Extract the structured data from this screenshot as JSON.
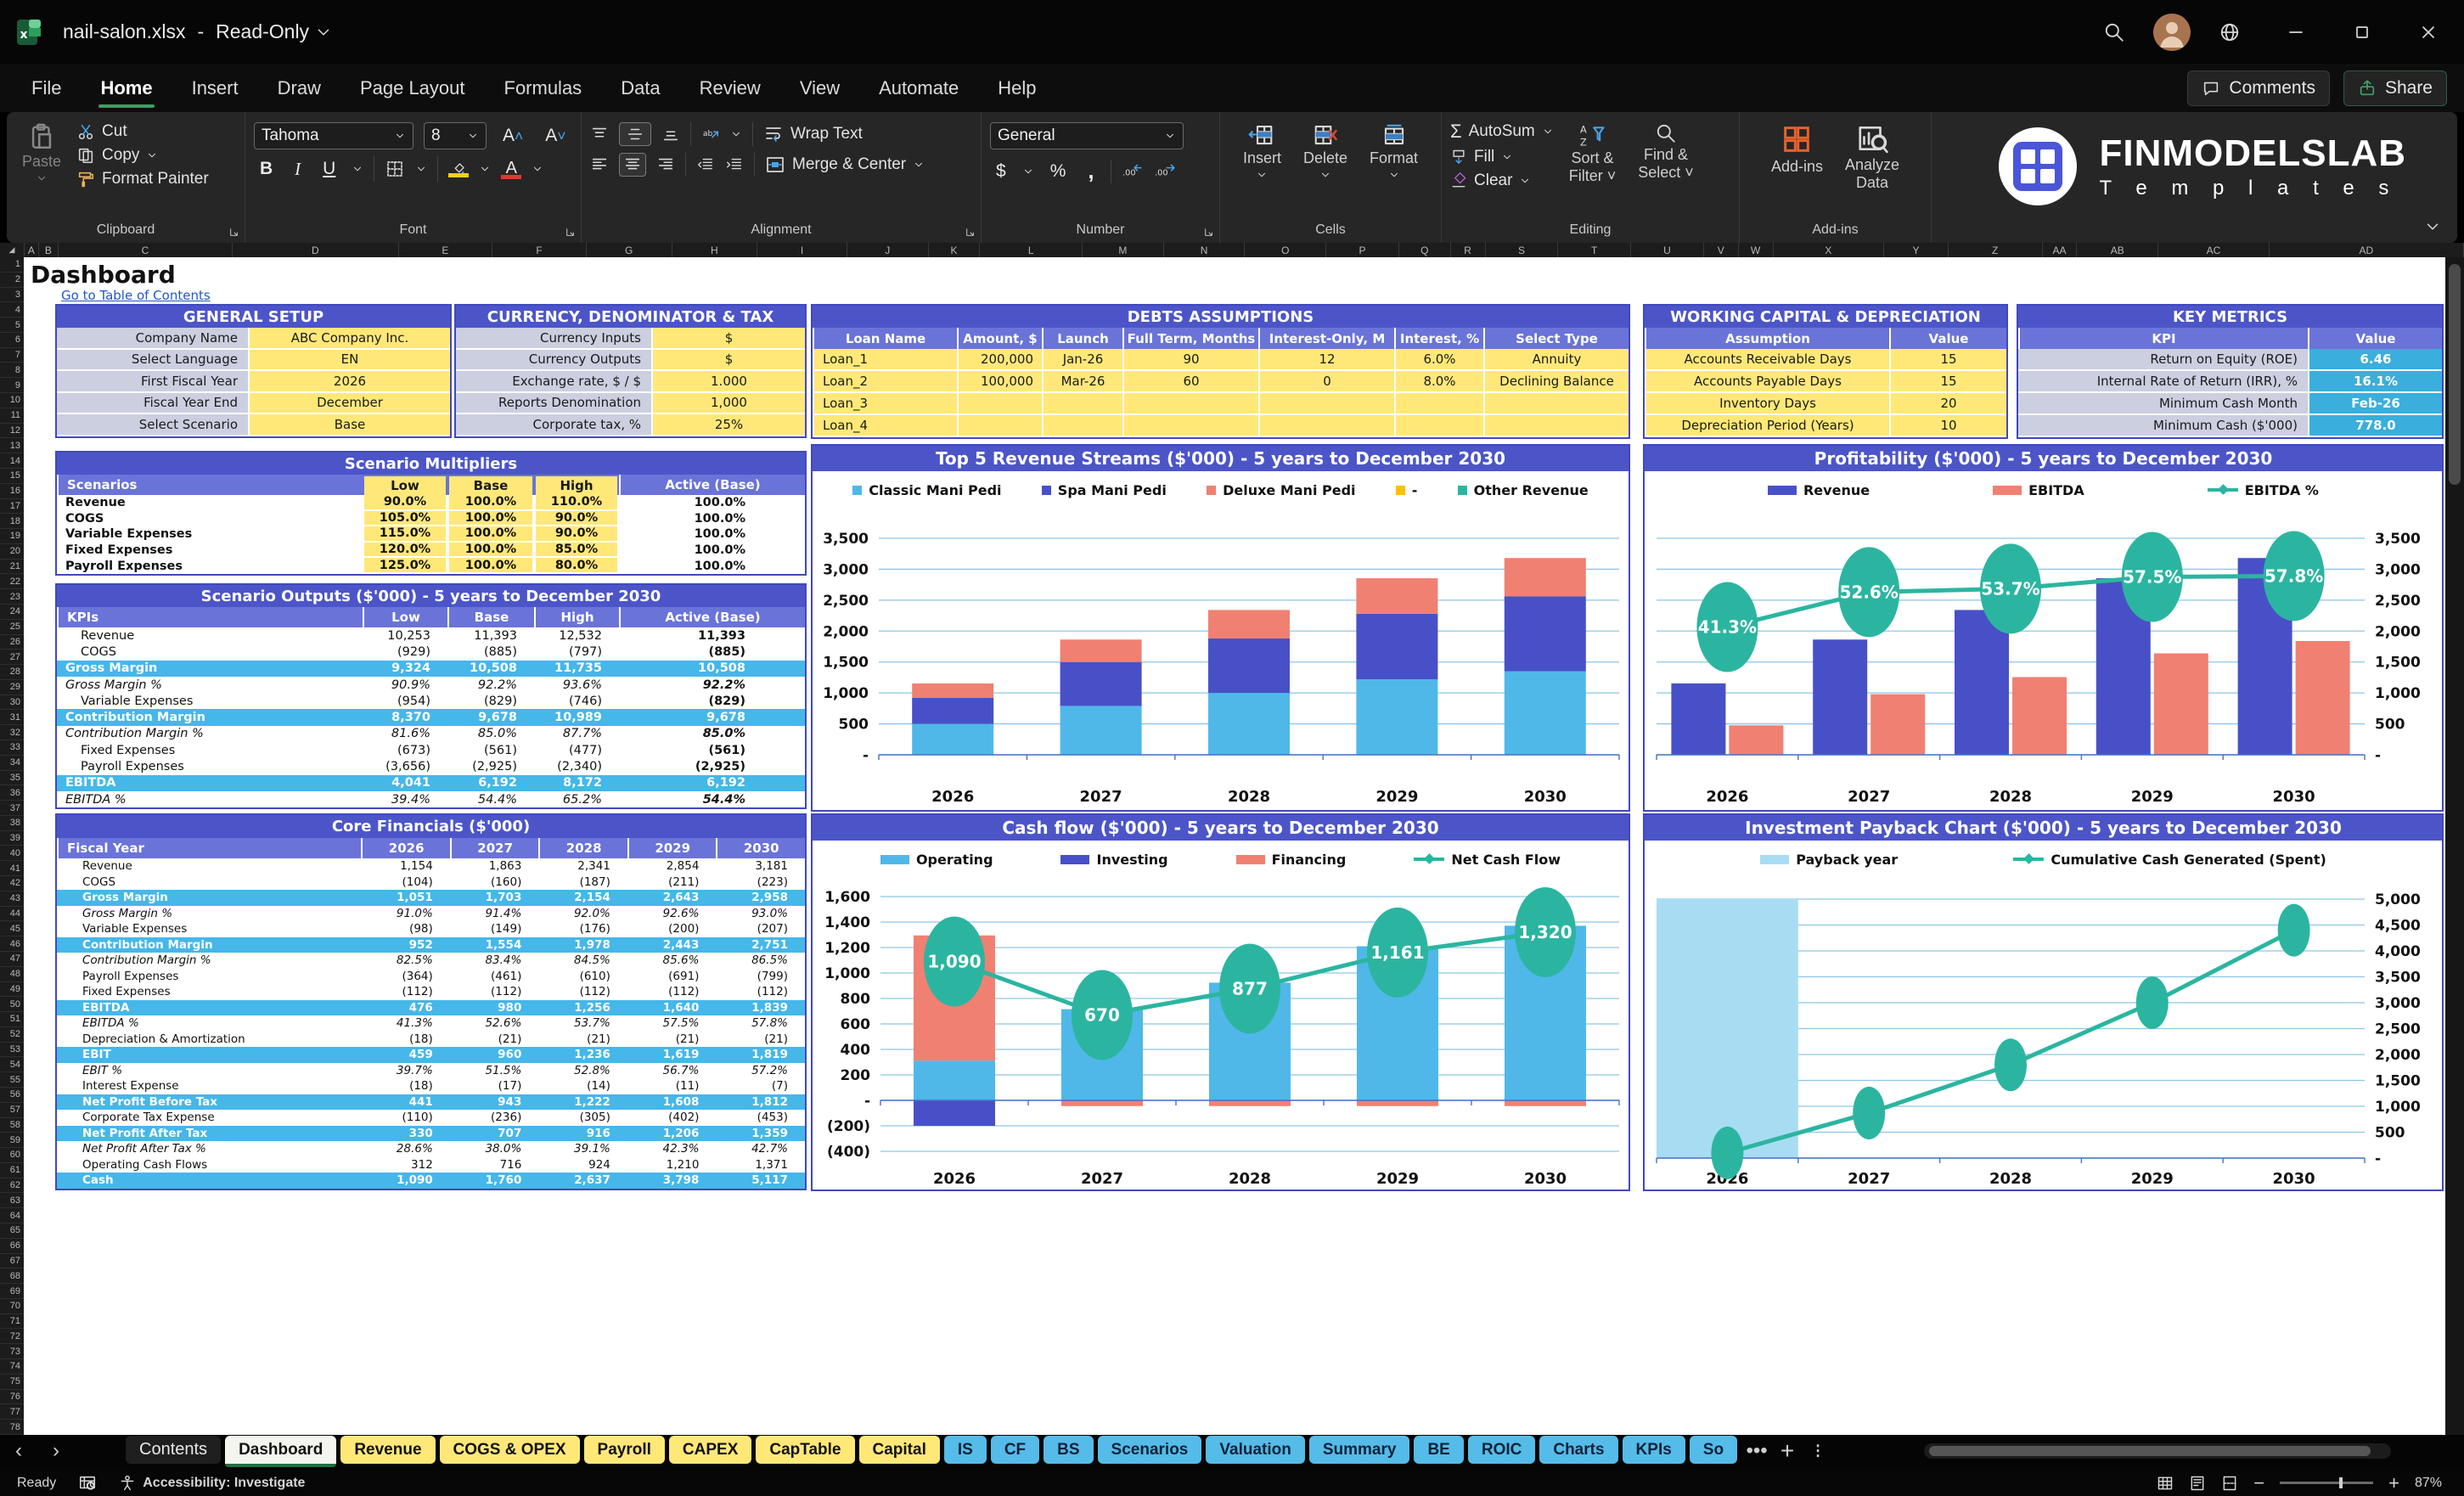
{
  "window": {
    "app_title": "nail-salon.xlsx",
    "dash": "-",
    "mode": "Read-Only",
    "comments": "Comments",
    "share": "Share"
  },
  "menu": {
    "items": [
      "File",
      "Home",
      "Insert",
      "Draw",
      "Page Layout",
      "Formulas",
      "Data",
      "Review",
      "View",
      "Automate",
      "Help"
    ],
    "active_index": 1
  },
  "ribbon": {
    "clipboard": {
      "paste": "Paste",
      "cut": "Cut",
      "copy": "Copy",
      "format_painter": "Format Painter",
      "group": "Clipboard"
    },
    "font": {
      "font_name": "Tahoma",
      "font_size": "8",
      "bold": "B",
      "italic": "I",
      "underline": "U",
      "group": "Font"
    },
    "alignment": {
      "wrap_text": "Wrap Text",
      "merge_center": "Merge & Center",
      "group": "Alignment"
    },
    "number": {
      "format": "General",
      "dollar": "$",
      "percent": "%",
      "comma": ",",
      "group": "Number"
    },
    "cells": {
      "insert": "Insert",
      "delete": "Delete",
      "format": "Format",
      "group": "Cells"
    },
    "editing": {
      "autosum": "AutoSum",
      "fill": "Fill",
      "clear": "Clear",
      "sort_filter": "Sort & Filter",
      "find_select": "Find & Select",
      "group": "Editing"
    },
    "addins": {
      "addins": "Add-ins",
      "analyze_line1": "Analyze",
      "analyze_line2": "Data",
      "group": "Add-ins"
    },
    "logo_line1": "FINMODELSLAB",
    "logo_line2": "T e m p l a t e s"
  },
  "grid": {
    "columns": [
      "A",
      "B",
      "C",
      "D",
      "E",
      "F",
      "G",
      "H",
      "I",
      "J",
      "K",
      "L",
      "M",
      "N",
      "O",
      "P",
      "Q",
      "R",
      "S",
      "T",
      "U",
      "V",
      "W",
      "X",
      "Y",
      "Z",
      "AA",
      "AB",
      "AC",
      "AD"
    ],
    "row_numbers": [
      1,
      2,
      3,
      4,
      5,
      6,
      7,
      8,
      9,
      10,
      11,
      12,
      13,
      14,
      15,
      16,
      17,
      18,
      19,
      20,
      21,
      22,
      23,
      24,
      25,
      26,
      27,
      28,
      29,
      30,
      31,
      32,
      33,
      34,
      35,
      36,
      37,
      38,
      39,
      40,
      41,
      42,
      43,
      44,
      45,
      46,
      47,
      48,
      49,
      50,
      51,
      52,
      53,
      54,
      55,
      56,
      57,
      58,
      59,
      60,
      61,
      62,
      63,
      64,
      65,
      66,
      67,
      68,
      69,
      70,
      71,
      72,
      73,
      74,
      75,
      76,
      77,
      78
    ]
  },
  "sheet": {
    "title": "Dashboard",
    "toc": "Go to Table of Contents"
  },
  "tables": {
    "general_setup": {
      "title": "GENERAL SETUP",
      "rows": [
        [
          "Company Name",
          "ABC Company Inc."
        ],
        [
          "Select Language",
          "EN"
        ],
        [
          "First Fiscal Year",
          "2026"
        ],
        [
          "Fiscal Year End",
          "December"
        ],
        [
          "Select Scenario",
          "Base"
        ]
      ]
    },
    "currency": {
      "title": "CURRENCY, DENOMINATOR & TAX",
      "rows": [
        [
          "Currency Inputs",
          "$"
        ],
        [
          "Currency Outputs",
          "$"
        ],
        [
          "Exchange rate, $ / $",
          "1.000"
        ],
        [
          "Reports Denomination",
          "1,000"
        ],
        [
          "Corporate tax, %",
          "25%"
        ]
      ]
    },
    "debts": {
      "title": "DEBTS ASSUMPTIONS",
      "columns": [
        "Loan Name",
        "Amount, $",
        "Launch",
        "Full Term, Months",
        "Interest-Only, M",
        "Interest, %",
        "Select Type"
      ],
      "rows": [
        [
          "Loan_1",
          "200,000",
          "Jan-26",
          "90",
          "12",
          "6.0%",
          "Annuity"
        ],
        [
          "Loan_2",
          "100,000",
          "Mar-26",
          "60",
          "0",
          "8.0%",
          "Declining Balance"
        ],
        [
          "Loan_3",
          "",
          "",
          "",
          "",
          "",
          ""
        ],
        [
          "Loan_4",
          "",
          "",
          "",
          "",
          "",
          ""
        ]
      ]
    },
    "working_capital": {
      "title": "WORKING CAPITAL & DEPRECIATION",
      "columns": [
        "Assumption",
        "Value"
      ],
      "rows": [
        [
          "Accounts Receivable Days",
          "15"
        ],
        [
          "Accounts Payable Days",
          "15"
        ],
        [
          "Inventory Days",
          "20"
        ],
        [
          "Depreciation Period (Years)",
          "10"
        ]
      ]
    },
    "key_metrics": {
      "title": "KEY METRICS",
      "columns": [
        "KPI",
        "Value"
      ],
      "rows": [
        [
          "Return on Equity (ROE)",
          "6.46"
        ],
        [
          "Internal Rate of Return (IRR), %",
          "16.1%"
        ],
        [
          "Minimum Cash Month",
          "Feb-26"
        ],
        [
          "Minimum Cash ($'000)",
          "778.0"
        ]
      ]
    },
    "scenario_multipliers": {
      "title": "Scenario Multipliers",
      "columns": [
        "Scenarios",
        "Low",
        "Base",
        "High",
        "Active (Base)"
      ],
      "rows": [
        {
          "label": "Revenue",
          "values": [
            "90.0%",
            "100.0%",
            "110.0%",
            "100.0%"
          ],
          "style": "input"
        },
        {
          "label": "COGS",
          "values": [
            "105.0%",
            "100.0%",
            "90.0%",
            "100.0%"
          ],
          "style": "input"
        },
        {
          "label": "Variable Expenses",
          "values": [
            "115.0%",
            "100.0%",
            "90.0%",
            "100.0%"
          ],
          "style": "input"
        },
        {
          "label": "Fixed Expenses",
          "values": [
            "120.0%",
            "100.0%",
            "85.0%",
            "100.0%"
          ],
          "style": "input"
        },
        {
          "label": "Payroll Expenses",
          "values": [
            "125.0%",
            "100.0%",
            "80.0%",
            "100.0%"
          ],
          "style": "input"
        }
      ]
    },
    "scenario_outputs": {
      "title": "Scenario Outputs ($'000) - 5 years to December 2030",
      "columns": [
        "KPIs",
        "Low",
        "Base",
        "High",
        "Active (Base)"
      ],
      "rows": [
        {
          "label": "Revenue",
          "values": [
            "10,253",
            "11,393",
            "12,532",
            "11,393"
          ],
          "style": "plain"
        },
        {
          "label": "COGS",
          "values": [
            "(929)",
            "(885)",
            "(797)",
            "(885)"
          ],
          "style": "plain"
        },
        {
          "label": "Gross Margin",
          "values": [
            "9,324",
            "10,508",
            "11,735",
            "10,508"
          ],
          "style": "total"
        },
        {
          "label": "Gross Margin %",
          "values": [
            "90.9%",
            "92.2%",
            "93.6%",
            "92.2%"
          ],
          "style": "pct"
        },
        {
          "label": "Variable Expenses",
          "values": [
            "(954)",
            "(829)",
            "(746)",
            "(829)"
          ],
          "style": "plain"
        },
        {
          "label": "Contribution Margin",
          "values": [
            "8,370",
            "9,678",
            "10,989",
            "9,678"
          ],
          "style": "total"
        },
        {
          "label": "Contribution Margin %",
          "values": [
            "81.6%",
            "85.0%",
            "87.7%",
            "85.0%"
          ],
          "style": "pct"
        },
        {
          "label": "Fixed Expenses",
          "values": [
            "(673)",
            "(561)",
            "(477)",
            "(561)"
          ],
          "style": "plain"
        },
        {
          "label": "Payroll Expenses",
          "values": [
            "(3,656)",
            "(2,925)",
            "(2,340)",
            "(2,925)"
          ],
          "style": "plain"
        },
        {
          "label": "EBITDA",
          "values": [
            "4,041",
            "6,192",
            "8,172",
            "6,192"
          ],
          "style": "total"
        },
        {
          "label": "EBITDA %",
          "values": [
            "39.4%",
            "54.4%",
            "65.2%",
            "54.4%"
          ],
          "style": "pct"
        }
      ]
    },
    "core_financials": {
      "title": "Core Financials ($'000)",
      "columns": [
        "Fiscal Year",
        "2026",
        "2027",
        "2028",
        "2029",
        "2030"
      ],
      "rows": [
        {
          "label": "Revenue",
          "values": [
            "1,154",
            "1,863",
            "2,341",
            "2,854",
            "3,181"
          ],
          "style": "plain"
        },
        {
          "label": "COGS",
          "values": [
            "(104)",
            "(160)",
            "(187)",
            "(211)",
            "(223)"
          ],
          "style": "plain"
        },
        {
          "label": "Gross Margin",
          "values": [
            "1,051",
            "1,703",
            "2,154",
            "2,643",
            "2,958"
          ],
          "style": "total"
        },
        {
          "label": "Gross Margin %",
          "values": [
            "91.0%",
            "91.4%",
            "92.0%",
            "92.6%",
            "93.0%"
          ],
          "style": "pct"
        },
        {
          "label": "Variable Expenses",
          "values": [
            "(98)",
            "(149)",
            "(176)",
            "(200)",
            "(207)"
          ],
          "style": "plain"
        },
        {
          "label": "Contribution Margin",
          "values": [
            "952",
            "1,554",
            "1,978",
            "2,443",
            "2,751"
          ],
          "style": "total"
        },
        {
          "label": "Contribution Margin %",
          "values": [
            "82.5%",
            "83.4%",
            "84.5%",
            "85.6%",
            "86.5%"
          ],
          "style": "pct"
        },
        {
          "label": "Payroll Expenses",
          "values": [
            "(364)",
            "(461)",
            "(610)",
            "(691)",
            "(799)"
          ],
          "style": "plain"
        },
        {
          "label": "Fixed Expenses",
          "values": [
            "(112)",
            "(112)",
            "(112)",
            "(112)",
            "(112)"
          ],
          "style": "plain"
        },
        {
          "label": "EBITDA",
          "values": [
            "476",
            "980",
            "1,256",
            "1,640",
            "1,839"
          ],
          "style": "total"
        },
        {
          "label": "EBITDA %",
          "values": [
            "41.3%",
            "52.6%",
            "53.7%",
            "57.5%",
            "57.8%"
          ],
          "style": "pct"
        },
        {
          "label": "Depreciation & Amortization",
          "values": [
            "(18)",
            "(21)",
            "(21)",
            "(21)",
            "(21)"
          ],
          "style": "plain"
        },
        {
          "label": "EBIT",
          "values": [
            "459",
            "960",
            "1,236",
            "1,619",
            "1,819"
          ],
          "style": "total"
        },
        {
          "label": "EBIT %",
          "values": [
            "39.7%",
            "51.5%",
            "52.8%",
            "56.7%",
            "57.2%"
          ],
          "style": "pct"
        },
        {
          "label": "Interest Expense",
          "values": [
            "(18)",
            "(17)",
            "(14)",
            "(11)",
            "(7)"
          ],
          "style": "plain"
        },
        {
          "label": "Net Profit Before Tax",
          "values": [
            "441",
            "943",
            "1,222",
            "1,608",
            "1,812"
          ],
          "style": "total"
        },
        {
          "label": "Corporate Tax Expense",
          "values": [
            "(110)",
            "(236)",
            "(305)",
            "(402)",
            "(453)"
          ],
          "style": "plain"
        },
        {
          "label": "Net Profit After Tax",
          "values": [
            "330",
            "707",
            "916",
            "1,206",
            "1,359"
          ],
          "style": "total"
        },
        {
          "label": "Net Profit After Tax %",
          "values": [
            "28.6%",
            "38.0%",
            "39.1%",
            "42.3%",
            "42.7%"
          ],
          "style": "pct"
        },
        {
          "label": "Operating Cash Flows",
          "values": [
            "312",
            "716",
            "924",
            "1,210",
            "1,371"
          ],
          "style": "plain"
        },
        {
          "label": "Cash",
          "values": [
            "1,090",
            "1,760",
            "2,637",
            "3,798",
            "5,117"
          ],
          "style": "total"
        }
      ]
    }
  },
  "chart_data": [
    {
      "type": "bar",
      "stacked": true,
      "title": "Top 5 Revenue Streams ($'000) - 5 years to December 2030",
      "categories": [
        "2026",
        "2027",
        "2028",
        "2029",
        "2030"
      ],
      "series": [
        {
          "name": "Classic Mani Pedi",
          "color": "#4fb8e8",
          "values": [
            500,
            790,
            1000,
            1220,
            1350
          ]
        },
        {
          "name": "Spa Mani Pedi",
          "color": "#4850c8",
          "values": [
            420,
            710,
            880,
            1060,
            1210
          ]
        },
        {
          "name": "Deluxe Mani Pedi",
          "color": "#f08072",
          "values": [
            234,
            363,
            461,
            574,
            621
          ]
        },
        {
          "name": "-",
          "color": "#ffc000",
          "values": [
            0,
            0,
            0,
            0,
            0
          ]
        },
        {
          "name": "Other Revenue",
          "color": "#2bb5a0",
          "values": [
            0,
            0,
            0,
            0,
            0
          ]
        }
      ],
      "ylim": [
        0,
        3500
      ],
      "ytick": 500,
      "axis_side": "left",
      "grid": true
    },
    {
      "type": "bar",
      "stacked": false,
      "title": "Profitability ($'000) - 5 years to December 2030",
      "categories": [
        "2026",
        "2027",
        "2028",
        "2029",
        "2030"
      ],
      "series": [
        {
          "name": "Revenue",
          "color": "#4850c8",
          "values": [
            1154,
            1863,
            2341,
            2854,
            3181
          ]
        },
        {
          "name": "EBITDA",
          "color": "#f08072",
          "values": [
            476,
            980,
            1256,
            1640,
            1839
          ]
        }
      ],
      "line": {
        "name": "EBITDA %",
        "color": "#2bb5a0",
        "values_pct": [
          41.3,
          52.6,
          53.7,
          57.5,
          57.8
        ],
        "labels": [
          "41.3%",
          "52.6%",
          "53.7%",
          "57.5%",
          "57.8%"
        ],
        "secondary_max": 70
      },
      "ylim": [
        0,
        3500
      ],
      "ytick": 500,
      "axis_side": "right",
      "grid": true
    },
    {
      "type": "bar",
      "stacked": true,
      "title": "Cash flow ($'000) - 5 years to December 2030",
      "categories": [
        "2026",
        "2027",
        "2028",
        "2029",
        "2030"
      ],
      "series": [
        {
          "name": "Operating",
          "color": "#4fb8e8",
          "values": [
            312,
            716,
            924,
            1210,
            1371
          ]
        },
        {
          "name": "Investing",
          "color": "#4850c8",
          "values": [
            -200,
            0,
            0,
            0,
            0
          ]
        },
        {
          "name": "Financing",
          "color": "#f08072",
          "values": [
            983,
            -45,
            -45,
            -45,
            -45
          ]
        }
      ],
      "line": {
        "name": "Net Cash Flow",
        "color": "#2bb5a0",
        "values": [
          1090,
          670,
          877,
          1161,
          1320
        ],
        "labels": [
          "1,090",
          "670",
          "877",
          "1,161",
          "1,320"
        ]
      },
      "ylim": [
        -400,
        1600
      ],
      "ytick": 200,
      "axis_side": "left",
      "grid": true
    },
    {
      "type": "area-line",
      "title": "Investment Payback Chart ($'000) - 5 years to December 2030",
      "categories": [
        "2026",
        "2027",
        "2028",
        "2029",
        "2030"
      ],
      "area": {
        "name": "Payback year",
        "color": "#a8dcf2",
        "covers_categories": 1
      },
      "line": {
        "name": "Cumulative Cash Generated (Spent)",
        "color": "#2bb5a0",
        "values": [
          100,
          870,
          1800,
          3000,
          4400
        ]
      },
      "ylim": [
        0,
        5000
      ],
      "ytick": 500,
      "axis_side": "right",
      "grid": true
    }
  ],
  "tabs": {
    "sheets": [
      {
        "label": "Contents",
        "style": "dark"
      },
      {
        "label": "Dashboard",
        "style": "active"
      },
      {
        "label": "Revenue",
        "style": "yellow"
      },
      {
        "label": "COGS & OPEX",
        "style": "yellow"
      },
      {
        "label": "Payroll",
        "style": "yellow"
      },
      {
        "label": "CAPEX",
        "style": "yellow"
      },
      {
        "label": "CapTable",
        "style": "yellow"
      },
      {
        "label": "Capital",
        "style": "yellow"
      },
      {
        "label": "IS",
        "style": "blue"
      },
      {
        "label": "CF",
        "style": "blue"
      },
      {
        "label": "BS",
        "style": "blue"
      },
      {
        "label": "Scenarios",
        "style": "blue"
      },
      {
        "label": "Valuation",
        "style": "blue"
      },
      {
        "label": "Summary",
        "style": "blue"
      },
      {
        "label": "BE",
        "style": "blue"
      },
      {
        "label": "ROIC",
        "style": "blue"
      },
      {
        "label": "Charts",
        "style": "blue"
      },
      {
        "label": "KPIs",
        "style": "blue"
      },
      {
        "label": "So",
        "style": "blue"
      }
    ],
    "more": "•••",
    "add": "+",
    "menu": "⁝"
  },
  "status": {
    "ready": "Ready",
    "accessibility": "Accessibility: Investigate",
    "zoom": "87%"
  }
}
